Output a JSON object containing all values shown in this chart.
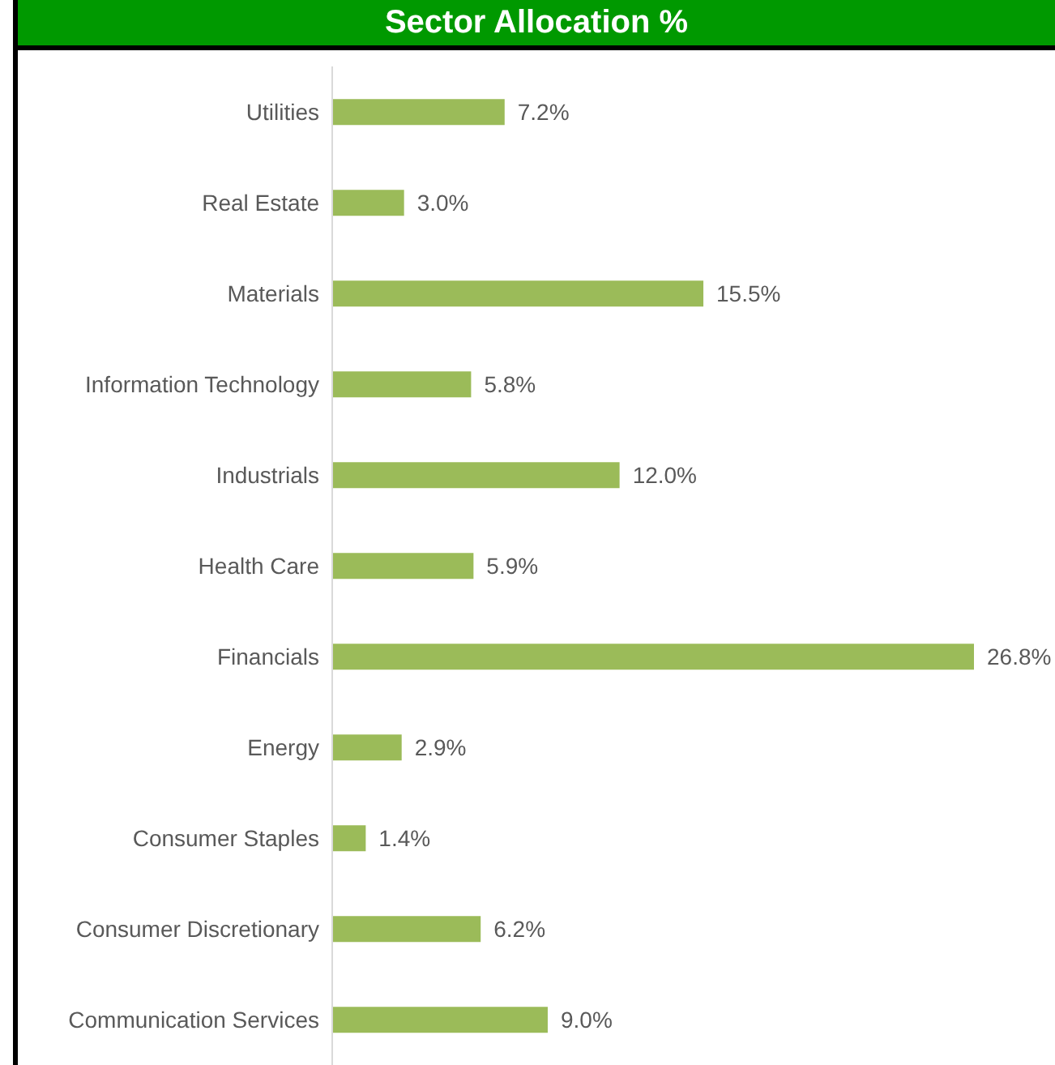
{
  "chart_data": {
    "type": "bar",
    "orientation": "horizontal",
    "title": "Sector Allocation %",
    "categories": [
      "Utilities",
      "Real Estate",
      "Materials",
      "Information Technology",
      "Industrials",
      "Health Care",
      "Financials",
      "Energy",
      "Consumer Staples",
      "Consumer Discretionary",
      "Communication Services"
    ],
    "values": [
      7.2,
      3.0,
      15.5,
      5.8,
      12.0,
      5.9,
      26.8,
      2.9,
      1.4,
      6.2,
      9.0
    ],
    "value_labels": [
      "7.2%",
      "3.0%",
      "15.5%",
      "5.8%",
      "12.0%",
      "5.9%",
      "26.8%",
      "2.9%",
      "1.4%",
      "6.2%",
      "9.0%"
    ],
    "color": "#9bbb59"
  }
}
